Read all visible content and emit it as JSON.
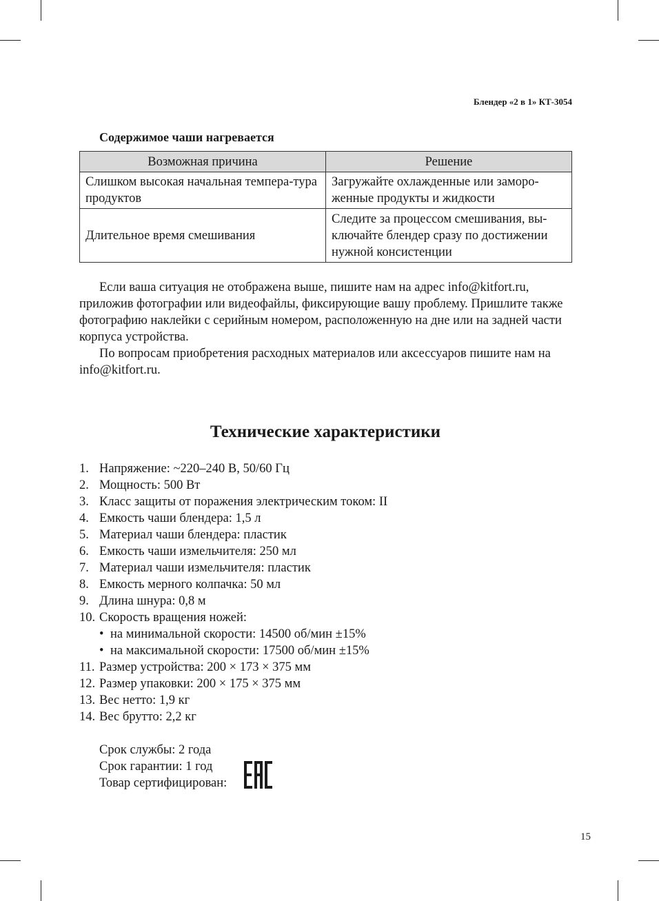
{
  "running_header": "Блендер «2 в 1» КТ-3054",
  "section_heading": "Содержимое чаши нагревается",
  "table": {
    "headers": [
      "Возможная причина",
      "Решение"
    ],
    "rows": [
      [
        "Слишком высокая начальная темпера-тура продуктов",
        "Загружайте охлажденные или заморо-женные продукты и жидкости"
      ],
      [
        "Длительное время смешивания",
        "Следите за процессом смешивания, вы-ключайте блендер сразу по достижении нужной консистенции"
      ]
    ]
  },
  "paragraphs": [
    "Если ваша ситуация не отображена выше, пишите нам на адрес info@kitfort.ru, приложив фотографии или видеофайлы, фиксирующие вашу проблему. Пришлите также фотографию наклейки с серийным номером, расположенную на дне или на задней части корпуса устройства.",
    "По вопросам приобретения расходных материалов или аксессуаров пишите нам на info@kitfort.ru."
  ],
  "specs_title": "Технические характеристики",
  "specs": [
    {
      "num": "1.",
      "text": "Напряжение: ~220–240 В, 50/60 Гц"
    },
    {
      "num": "2.",
      "text": "Мощность: 500 Вт"
    },
    {
      "num": "3.",
      "text": "Класс защиты от поражения электрическим током: II"
    },
    {
      "num": "4.",
      "text": "Емкость чаши блендера: 1,5 л"
    },
    {
      "num": "5.",
      "text": "Материал чаши блендера: пластик"
    },
    {
      "num": "6.",
      "text": "Емкость чаши измельчителя: 250 мл"
    },
    {
      "num": "7.",
      "text": "Материал чаши измельчителя: пластик"
    },
    {
      "num": "8.",
      "text": "Емкость мерного колпачка: 50 мл"
    },
    {
      "num": "9.",
      "text": "Длина шнура: 0,8 м"
    },
    {
      "num": "10.",
      "text": "Скорость вращения ножей:"
    },
    {
      "num": "11.",
      "text": "Размер устройства: 200 × 173 × 375 мм"
    },
    {
      "num": "12.",
      "text": "Размер упаковки: 200 × 175 × 375 мм"
    },
    {
      "num": "13.",
      "text": "Вес нетто: 1,9 кг"
    },
    {
      "num": "14.",
      "text": "Вес брутто: 2,2 кг"
    }
  ],
  "speed_bullets": [
    "на минимальной скорости: 14500 об/мин ±15%",
    "на максимальной скорости: 17500 об/мин ±15%"
  ],
  "service_life": "Срок службы: 2 года",
  "warranty": "Срок гарантии: 1 год",
  "certified": "Товар сертифицирован:",
  "certification_logo": "EAC",
  "page_number": "15"
}
